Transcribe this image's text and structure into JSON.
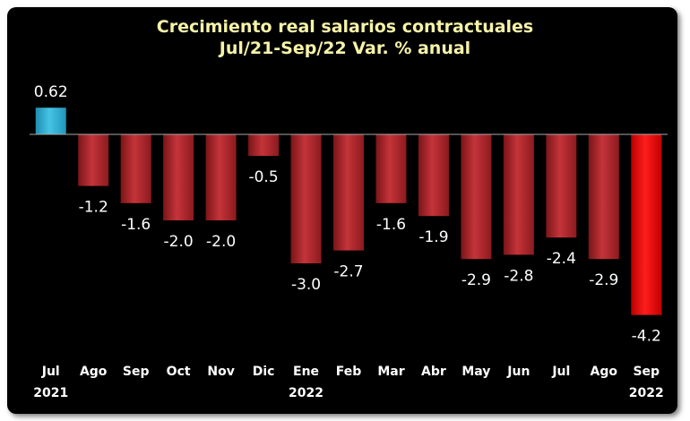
{
  "chart_data": {
    "type": "bar",
    "title": "Crecimiento real salarios contractuales",
    "subtitle": "Jul/21-Sep/22 Var. % anual",
    "xlabel": "",
    "ylabel": "",
    "grid": false,
    "legend": "none",
    "ylim": [
      -5.0,
      1.0
    ],
    "categories": [
      "Jul",
      "Ago",
      "Sep",
      "Oct",
      "Nov",
      "Dic",
      "Ene",
      "Feb",
      "Mar",
      "Abr",
      "May",
      "Jun",
      "Jul",
      "Ago",
      "Sep"
    ],
    "category_years": [
      "2021",
      "",
      "",
      "",
      "",
      "",
      "2022",
      "",
      "",
      "",
      "",
      "",
      "",
      "",
      "2022"
    ],
    "values": [
      0.62,
      -1.2,
      -1.6,
      -2.0,
      -2.0,
      -0.5,
      -3.0,
      -2.7,
      -1.6,
      -1.9,
      -2.9,
      -2.8,
      -2.4,
      -2.9,
      -4.2
    ],
    "value_labels": [
      "0.62",
      "-1.2",
      "-1.6",
      "-2.0",
      "-2.0",
      "-0.5",
      "-3.0",
      "-2.7",
      "-1.6",
      "-1.9",
      "-2.9",
      "-2.8",
      "-2.4",
      "-2.9",
      "-4.2"
    ],
    "colors": {
      "positive": "#3ab6d8",
      "negative": "#b8262b",
      "highlight": "#ee1111",
      "axis": "#a9a9a9",
      "title": "#f6f3a8"
    }
  }
}
